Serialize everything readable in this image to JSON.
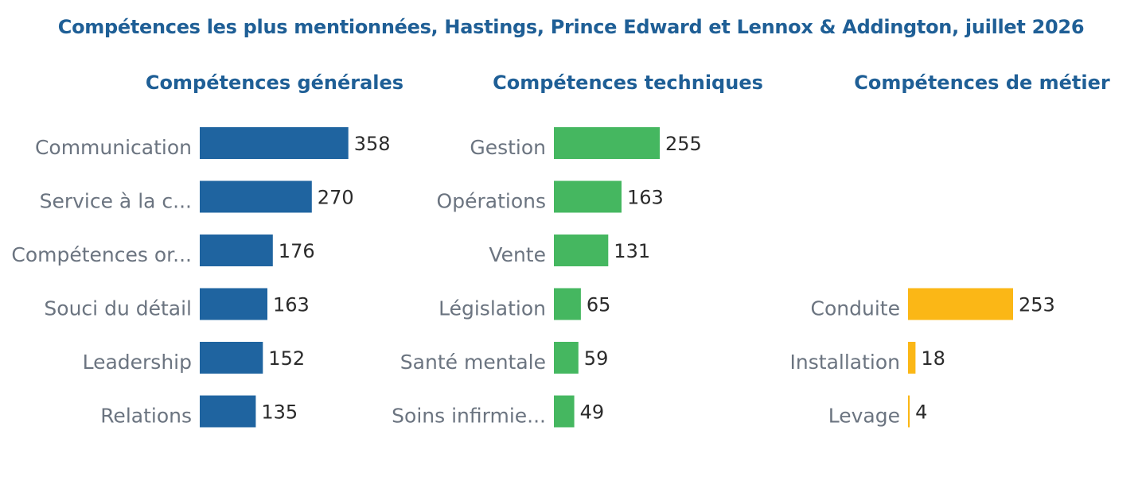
{
  "title": "Compétences les plus mentionnées, Hastings, Prince Edward et Lennox & Addington, juillet 2026",
  "chart_data": [
    {
      "type": "bar",
      "orientation": "horizontal",
      "title": "Compétences générales",
      "color": "#1f64a0",
      "categories": [
        "Communication",
        "Service à la c...",
        "Compétences or...",
        "Souci du détail",
        "Leadership",
        "Relations"
      ],
      "values": [
        358,
        270,
        176,
        163,
        152,
        135
      ]
    },
    {
      "type": "bar",
      "orientation": "horizontal",
      "title": "Compétences techniques",
      "color": "#45b760",
      "categories": [
        "Gestion",
        "Opérations",
        "Vente",
        "Législation",
        "Santé mentale",
        "Soins infirmie..."
      ],
      "values": [
        255,
        163,
        131,
        65,
        59,
        49
      ]
    },
    {
      "type": "bar",
      "orientation": "horizontal",
      "title": "Compétences de métier",
      "color": "#fbb716",
      "categories": [
        "Conduite",
        "Installation",
        "Levage"
      ],
      "values": [
        253,
        18,
        4
      ]
    }
  ]
}
